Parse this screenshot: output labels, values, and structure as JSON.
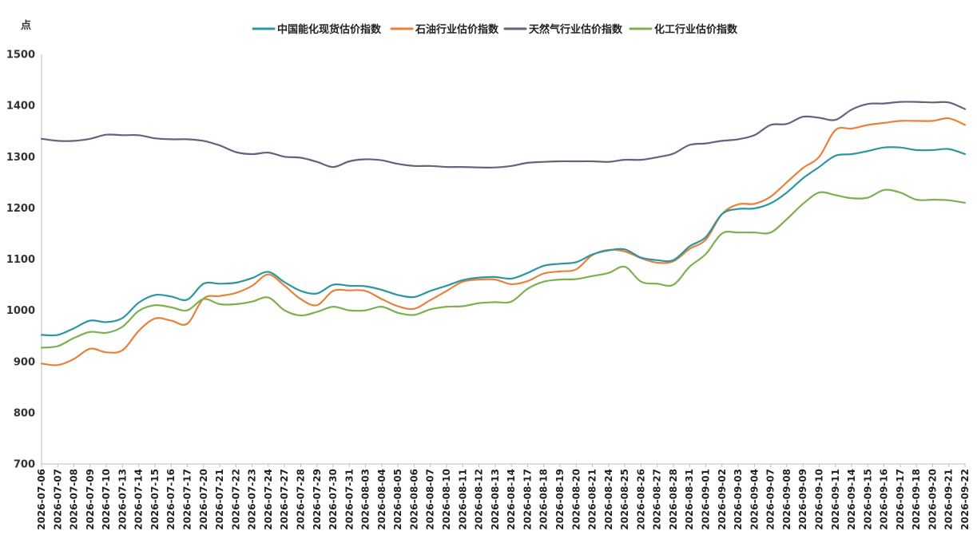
{
  "chart_data": {
    "type": "line",
    "ylabel": "点",
    "ylim": [
      700,
      1500
    ],
    "yticks": [
      700,
      800,
      900,
      1000,
      1100,
      1200,
      1300,
      1400,
      1500
    ],
    "legend_position": "top-center",
    "grid": false,
    "x": [
      "2026-07-06",
      "2026-07-07",
      "2026-07-08",
      "2026-07-09",
      "2026-07-10",
      "2026-07-13",
      "2026-07-14",
      "2026-07-15",
      "2026-07-16",
      "2026-07-17",
      "2026-07-20",
      "2026-07-21",
      "2026-07-22",
      "2026-07-23",
      "2026-07-24",
      "2026-07-27",
      "2026-07-28",
      "2026-07-29",
      "2026-07-30",
      "2026-07-31",
      "2026-08-03",
      "2026-08-04",
      "2026-08-05",
      "2026-08-06",
      "2026-08-07",
      "2026-08-10",
      "2026-08-11",
      "2026-08-12",
      "2026-08-13",
      "2026-08-14",
      "2026-08-17",
      "2026-08-18",
      "2026-08-19",
      "2026-08-20",
      "2026-08-21",
      "2026-08-24",
      "2026-08-25",
      "2026-08-26",
      "2026-08-27",
      "2026-08-28",
      "2026-08-31",
      "2026-09-01",
      "2026-09-02",
      "2026-09-03",
      "2026-09-04",
      "2026-09-07",
      "2026-09-08",
      "2026-09-09",
      "2026-09-10",
      "2026-09-11",
      "2026-09-14",
      "2026-09-15",
      "2026-09-16",
      "2026-09-17",
      "2026-09-18",
      "2026-09-20",
      "2026-09-21",
      "2026-09-22"
    ],
    "series": [
      {
        "name": "中国能化现货估价指数",
        "color": "#2e95a3",
        "values": [
          952,
          952,
          965,
          980,
          977,
          985,
          1015,
          1030,
          1027,
          1021,
          1052,
          1052,
          1054,
          1063,
          1075,
          1055,
          1038,
          1033,
          1050,
          1048,
          1047,
          1040,
          1030,
          1026,
          1038,
          1048,
          1059,
          1064,
          1065,
          1062,
          1073,
          1087,
          1091,
          1094,
          1109,
          1117,
          1119,
          1103,
          1098,
          1098,
          1125,
          1143,
          1188,
          1198,
          1199,
          1209,
          1230,
          1258,
          1280,
          1302,
          1305,
          1311,
          1318,
          1318,
          1313,
          1313,
          1315,
          1305
        ]
      },
      {
        "name": "石油行业估价指数",
        "color": "#e8823a",
        "values": [
          896,
          893,
          905,
          925,
          918,
          922,
          960,
          984,
          980,
          974,
          1023,
          1028,
          1034,
          1048,
          1070,
          1048,
          1022,
          1010,
          1038,
          1039,
          1038,
          1022,
          1008,
          1003,
          1020,
          1038,
          1056,
          1060,
          1060,
          1051,
          1057,
          1072,
          1076,
          1080,
          1108,
          1118,
          1115,
          1102,
          1093,
          1096,
          1120,
          1138,
          1188,
          1207,
          1208,
          1222,
          1250,
          1278,
          1300,
          1352,
          1355,
          1362,
          1366,
          1370,
          1370,
          1370,
          1375,
          1362
        ]
      },
      {
        "name": "天然气行业估价指数",
        "color": "#67617e",
        "values": [
          1335,
          1331,
          1331,
          1335,
          1343,
          1342,
          1342,
          1336,
          1334,
          1334,
          1331,
          1322,
          1309,
          1305,
          1308,
          1300,
          1298,
          1290,
          1280,
          1291,
          1295,
          1293,
          1286,
          1282,
          1282,
          1280,
          1280,
          1279,
          1279,
          1282,
          1288,
          1290,
          1291,
          1291,
          1291,
          1290,
          1294,
          1294,
          1299,
          1306,
          1323,
          1326,
          1331,
          1334,
          1342,
          1362,
          1364,
          1378,
          1376,
          1372,
          1392,
          1403,
          1404,
          1407,
          1407,
          1406,
          1406,
          1393
        ]
      },
      {
        "name": "化工行业估价指数",
        "color": "#7eb050",
        "values": [
          927,
          930,
          946,
          958,
          956,
          968,
          999,
          1010,
          1006,
          1000,
          1022,
          1012,
          1012,
          1017,
          1025,
          1000,
          990,
          997,
          1007,
          1000,
          1000,
          1007,
          995,
          991,
          1002,
          1007,
          1008,
          1014,
          1016,
          1017,
          1042,
          1056,
          1060,
          1061,
          1067,
          1073,
          1085,
          1056,
          1052,
          1050,
          1085,
          1110,
          1150,
          1152,
          1152,
          1152,
          1178,
          1208,
          1230,
          1225,
          1219,
          1220,
          1235,
          1230,
          1216,
          1216,
          1215,
          1210
        ]
      }
    ]
  }
}
